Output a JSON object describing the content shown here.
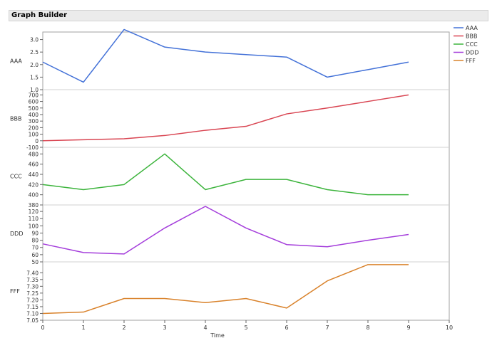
{
  "panel": {
    "title": "Graph Builder"
  },
  "chart_data": {
    "type": "line",
    "x": [
      0,
      1,
      2,
      3,
      4,
      5,
      6,
      7,
      8,
      9
    ],
    "x_ticks": [
      "0",
      "1",
      "2",
      "3",
      "4",
      "5",
      "6",
      "7",
      "8",
      "9",
      "10"
    ],
    "xlim": [
      0,
      10
    ],
    "xlabel": "Time",
    "grid": false,
    "legend_position": "top-right",
    "series": [
      {
        "name": "AAA",
        "color": "#4472d8",
        "values": [
          2.1,
          1.3,
          3.4,
          2.7,
          2.5,
          2.4,
          2.3,
          1.5,
          1.8,
          2.1
        ],
        "ylim": [
          1.0,
          3.3
        ],
        "ticks": [
          "1.0",
          "1.5",
          "2.0",
          "2.5",
          "3.0"
        ]
      },
      {
        "name": "BBB",
        "color": "#d94552",
        "values": [
          0,
          15,
          30,
          80,
          160,
          220,
          410,
          500,
          600,
          700
        ],
        "ylim": [
          -100,
          780
        ],
        "ticks": [
          "-100",
          "0",
          "100",
          "200",
          "300",
          "400",
          "500",
          "600",
          "700"
        ]
      },
      {
        "name": "CCC",
        "color": "#3cb43c",
        "values": [
          420,
          410,
          420,
          480,
          410,
          430,
          430,
          410,
          400,
          400
        ],
        "ylim": [
          380,
          493
        ],
        "ticks": [
          "380",
          "400",
          "420",
          "440",
          "460",
          "480"
        ]
      },
      {
        "name": "DDD",
        "color": "#a43ddb",
        "values": [
          75,
          63,
          61,
          97,
          127,
          97,
          74,
          71,
          80,
          88
        ],
        "ylim": [
          50,
          129
        ],
        "ticks": [
          "50",
          "60",
          "70",
          "80",
          "90",
          "100",
          "110",
          "120"
        ]
      },
      {
        "name": "FFF",
        "color": "#d9822b",
        "values": [
          7.1,
          7.11,
          7.21,
          7.21,
          7.18,
          7.21,
          7.14,
          7.34,
          7.46,
          7.46
        ],
        "ylim": [
          7.05,
          7.48
        ],
        "ticks": [
          "7.05",
          "7.10",
          "7.15",
          "7.20",
          "7.25",
          "7.30",
          "7.35",
          "7.40"
        ]
      }
    ]
  }
}
